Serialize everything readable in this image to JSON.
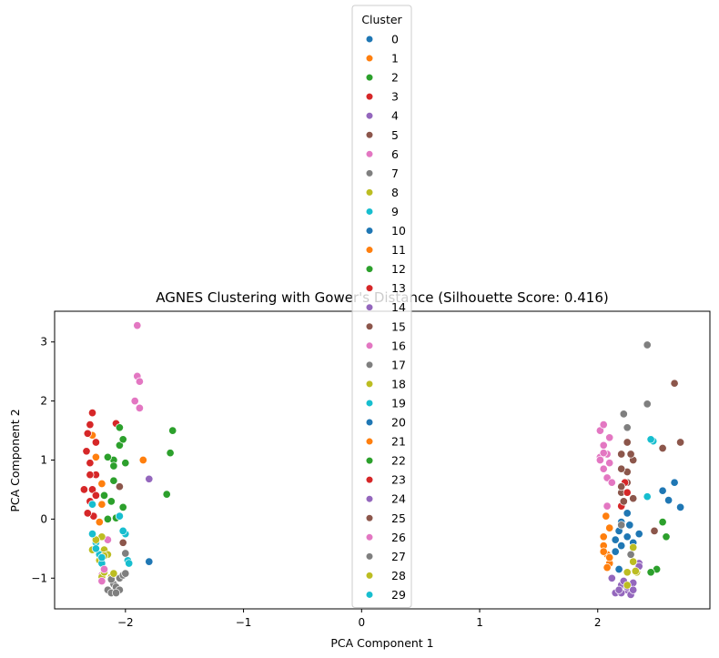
{
  "chart_data": {
    "type": "scatter",
    "title": "AGNES Clustering with Gower's Distance (Silhouette Score: 0.416)",
    "xlabel": "PCA Component 1",
    "ylabel": "PCA Component 2",
    "xlim": [
      -2.6,
      2.95
    ],
    "ylim": [
      -1.52,
      3.52
    ],
    "xticks": [
      "−2",
      "−1",
      "0",
      "1",
      "2"
    ],
    "xtick_values": [
      -2,
      -1,
      0,
      1,
      2
    ],
    "yticks": [
      "−1",
      "0",
      "1",
      "2",
      "3"
    ],
    "ytick_values": [
      -1,
      0,
      1,
      2,
      3
    ],
    "legend_title": "Cluster",
    "legend_placement": "top-center",
    "grid": false,
    "series": [
      {
        "name": "0",
        "color": "#1f77b4",
        "points": [
          [
            2.18,
            -0.2
          ],
          [
            2.25,
            -0.3
          ],
          [
            2.2,
            -0.05
          ],
          [
            2.3,
            -0.4
          ],
          [
            2.15,
            -0.35
          ],
          [
            2.27,
            -0.1
          ]
        ]
      },
      {
        "name": "1",
        "color": "#ff7f0e",
        "points": [
          [
            -2.25,
            1.05
          ],
          [
            -2.2,
            0.6
          ],
          [
            -1.85,
            1.0
          ],
          [
            -2.28,
            1.42
          ],
          [
            -2.2,
            0.25
          ]
        ]
      },
      {
        "name": "2",
        "color": "#2ca02c",
        "points": [
          [
            -2.1,
            1.0
          ],
          [
            -2.12,
            0.3
          ],
          [
            -1.6,
            1.5
          ],
          [
            -1.62,
            1.12
          ],
          [
            -1.65,
            0.42
          ],
          [
            -2.08,
            0.02
          ],
          [
            -2.02,
            0.2
          ]
        ]
      },
      {
        "name": "3",
        "color": "#d62728",
        "points": [
          [
            -2.32,
            1.45
          ],
          [
            -2.28,
            1.8
          ],
          [
            -2.33,
            1.15
          ],
          [
            -2.3,
            0.95
          ],
          [
            -2.25,
            0.75
          ],
          [
            -2.28,
            0.5
          ],
          [
            -2.3,
            0.3
          ],
          [
            -2.27,
            0.05
          ],
          [
            -2.08,
            1.62
          ]
        ]
      },
      {
        "name": "4",
        "color": "#9467bd",
        "points": [
          [
            2.2,
            -1.12
          ],
          [
            2.25,
            -1.2
          ],
          [
            2.15,
            -1.25
          ],
          [
            2.3,
            -1.08
          ],
          [
            -1.8,
            0.68
          ],
          [
            2.35,
            -0.75
          ]
        ]
      },
      {
        "name": "5",
        "color": "#8c564b",
        "points": [
          [
            2.2,
            0.45
          ],
          [
            2.25,
            0.62
          ],
          [
            2.3,
            0.35
          ],
          [
            -2.05,
            0.55
          ],
          [
            2.55,
            1.2
          ],
          [
            2.65,
            2.3
          ],
          [
            2.7,
            1.3
          ]
        ]
      },
      {
        "name": "6",
        "color": "#e377c2",
        "points": [
          [
            2.02,
            1.5
          ],
          [
            2.05,
            1.25
          ],
          [
            2.08,
            1.1
          ],
          [
            2.1,
            0.95
          ],
          [
            2.05,
            0.85
          ],
          [
            2.08,
            0.7
          ],
          [
            -2.2,
            -0.95
          ],
          [
            -2.15,
            -0.35
          ]
        ]
      },
      {
        "name": "7",
        "color": "#7f7f7f",
        "points": [
          [
            -2.15,
            -1.2
          ],
          [
            -2.1,
            -1.1
          ],
          [
            -2.05,
            -1.0
          ],
          [
            -2.12,
            -1.25
          ],
          [
            -2.08,
            -1.15
          ],
          [
            2.22,
            1.78
          ],
          [
            2.42,
            1.95
          ],
          [
            2.25,
            1.55
          ]
        ]
      },
      {
        "name": "8",
        "color": "#bcbd22",
        "points": [
          [
            -2.22,
            -0.7
          ],
          [
            -2.2,
            -0.98
          ],
          [
            -2.18,
            -0.52
          ],
          [
            -2.15,
            -0.6
          ],
          [
            2.25,
            -0.9
          ],
          [
            2.3,
            -0.72
          ]
        ]
      },
      {
        "name": "9",
        "color": "#17becf",
        "points": [
          [
            -2.25,
            -0.4
          ],
          [
            -2.22,
            -0.6
          ],
          [
            -2.0,
            -0.25
          ],
          [
            -1.98,
            -0.7
          ],
          [
            2.42,
            0.38
          ],
          [
            2.47,
            1.32
          ]
        ]
      },
      {
        "name": "10",
        "color": "#1f77b4",
        "points": [
          [
            -1.8,
            -0.72
          ],
          [
            2.65,
            0.62
          ],
          [
            2.6,
            0.32
          ],
          [
            2.55,
            0.48
          ],
          [
            2.7,
            0.2
          ],
          [
            2.35,
            -0.25
          ]
        ]
      },
      {
        "name": "11",
        "color": "#ff7f0e",
        "points": [
          [
            2.05,
            -0.45
          ],
          [
            2.08,
            -0.6
          ],
          [
            2.1,
            -0.75
          ],
          [
            2.05,
            -0.3
          ],
          [
            2.07,
            0.05
          ],
          [
            2.1,
            -0.15
          ]
        ]
      },
      {
        "name": "12",
        "color": "#2ca02c",
        "points": [
          [
            -2.05,
            1.25
          ],
          [
            -2.0,
            0.95
          ],
          [
            -2.1,
            0.65
          ],
          [
            2.55,
            -0.05
          ],
          [
            2.5,
            -0.85
          ],
          [
            2.58,
            -0.3
          ]
        ]
      },
      {
        "name": "13",
        "color": "#d62728",
        "points": [
          [
            -2.3,
            1.6
          ],
          [
            -2.25,
            1.3
          ],
          [
            2.23,
            0.62
          ],
          [
            2.2,
            0.22
          ],
          [
            -2.32,
            0.1
          ]
        ]
      },
      {
        "name": "14",
        "color": "#9467bd",
        "points": [
          [
            2.2,
            -1.25
          ],
          [
            2.28,
            -1.28
          ],
          [
            2.25,
            -1.15
          ],
          [
            2.35,
            -0.8
          ]
        ]
      },
      {
        "name": "15",
        "color": "#8c564b",
        "points": [
          [
            2.2,
            1.1
          ],
          [
            2.25,
            0.8
          ],
          [
            2.3,
            1.0
          ],
          [
            2.25,
            1.3
          ],
          [
            2.2,
            0.55
          ],
          [
            2.48,
            -0.2
          ]
        ]
      },
      {
        "name": "16",
        "color": "#e377c2",
        "points": [
          [
            -1.9,
            3.28
          ],
          [
            -1.9,
            2.42
          ],
          [
            -1.88,
            2.33
          ],
          [
            -1.92,
            2.0
          ],
          [
            -1.88,
            1.88
          ],
          [
            2.05,
            1.6
          ],
          [
            2.1,
            1.38
          ],
          [
            2.02,
            1.05
          ],
          [
            2.12,
            0.62
          ]
        ]
      },
      {
        "name": "17",
        "color": "#7f7f7f",
        "points": [
          [
            2.42,
            2.95
          ],
          [
            2.2,
            -0.1
          ],
          [
            -2.0,
            -0.58
          ],
          [
            -2.02,
            -0.95
          ]
        ]
      },
      {
        "name": "18",
        "color": "#bcbd22",
        "points": [
          [
            -2.18,
            -0.9
          ],
          [
            -2.2,
            -0.3
          ],
          [
            -2.12,
            -0.98
          ],
          [
            2.3,
            -0.48
          ],
          [
            2.33,
            -0.9
          ]
        ]
      },
      {
        "name": "19",
        "color": "#17becf",
        "points": [
          [
            -2.28,
            0.25
          ],
          [
            -2.2,
            -0.75
          ],
          [
            2.45,
            1.35
          ],
          [
            -2.02,
            -0.2
          ]
        ]
      },
      {
        "name": "20",
        "color": "#1f77b4",
        "points": [
          [
            2.15,
            -0.55
          ],
          [
            2.2,
            -0.45
          ],
          [
            2.25,
            0.1
          ],
          [
            2.18,
            -0.85
          ]
        ]
      },
      {
        "name": "21",
        "color": "#ff7f0e",
        "points": [
          [
            2.05,
            -0.55
          ],
          [
            2.1,
            -0.65
          ],
          [
            -2.22,
            -0.05
          ],
          [
            2.08,
            -0.82
          ]
        ]
      },
      {
        "name": "22",
        "color": "#2ca02c",
        "points": [
          [
            -2.15,
            1.05
          ],
          [
            -2.1,
            0.9
          ],
          [
            -2.18,
            0.4
          ],
          [
            -2.15,
            0.0
          ],
          [
            2.45,
            -0.9
          ],
          [
            -2.05,
            1.55
          ],
          [
            -2.02,
            1.35
          ]
        ]
      },
      {
        "name": "23",
        "color": "#d62728",
        "points": [
          [
            -2.35,
            0.5
          ],
          [
            -2.3,
            0.75
          ],
          [
            2.25,
            0.45
          ],
          [
            -2.25,
            0.4
          ]
        ]
      },
      {
        "name": "24",
        "color": "#9467bd",
        "points": [
          [
            2.3,
            -1.2
          ],
          [
            2.18,
            -1.2
          ],
          [
            2.22,
            -1.05
          ],
          [
            2.12,
            -1.0
          ]
        ]
      },
      {
        "name": "25",
        "color": "#8c564b",
        "points": [
          [
            2.2,
            0.85
          ],
          [
            2.28,
            1.1
          ],
          [
            2.22,
            0.3
          ],
          [
            -2.02,
            -0.4
          ]
        ]
      },
      {
        "name": "26",
        "color": "#e377c2",
        "points": [
          [
            -2.2,
            -1.05
          ],
          [
            -2.18,
            -0.85
          ],
          [
            2.02,
            1.0
          ],
          [
            2.08,
            0.22
          ],
          [
            2.05,
            1.12
          ]
        ]
      },
      {
        "name": "27",
        "color": "#7f7f7f",
        "points": [
          [
            -2.05,
            -1.2
          ],
          [
            -2.12,
            -1.02
          ],
          [
            -2.0,
            -0.92
          ],
          [
            -2.08,
            -1.25
          ],
          [
            2.28,
            -0.6
          ]
        ]
      },
      {
        "name": "28",
        "color": "#bcbd22",
        "points": [
          [
            -2.25,
            -0.35
          ],
          [
            -2.28,
            -0.52
          ],
          [
            -2.18,
            -0.62
          ],
          [
            2.25,
            -1.12
          ],
          [
            2.32,
            -0.88
          ],
          [
            -2.1,
            -0.92
          ]
        ]
      },
      {
        "name": "29",
        "color": "#17becf",
        "points": [
          [
            -2.25,
            -0.5
          ],
          [
            -2.2,
            -0.65
          ],
          [
            -2.28,
            -0.25
          ],
          [
            -2.05,
            0.05
          ],
          [
            -1.97,
            -0.75
          ]
        ]
      }
    ]
  }
}
